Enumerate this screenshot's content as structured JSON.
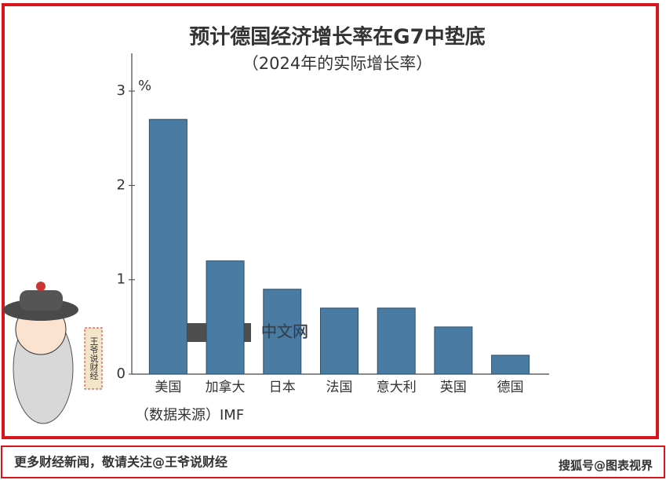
{
  "chart_data": {
    "type": "bar",
    "title": "预计德国经济增长率在G7中垫底",
    "subtitle": "（2024年的实际增长率）",
    "y_unit": "%",
    "categories": [
      "美国",
      "加拿大",
      "日本",
      "法国",
      "意大利",
      "英国",
      "德国"
    ],
    "values": [
      2.7,
      1.2,
      0.9,
      0.7,
      0.7,
      0.5,
      0.2
    ],
    "color": "#4a7ca3",
    "ylim": [
      0,
      3.4
    ],
    "yticks": [
      0,
      1,
      2,
      3
    ],
    "grid": false,
    "source": "（数据来源）IMF",
    "watermark": "中文网"
  },
  "badge": "王爷说财经",
  "footer": {
    "left": "更多财经新闻，敬请关注@王爷说财经",
    "right": "搜狐号@图表视界"
  }
}
